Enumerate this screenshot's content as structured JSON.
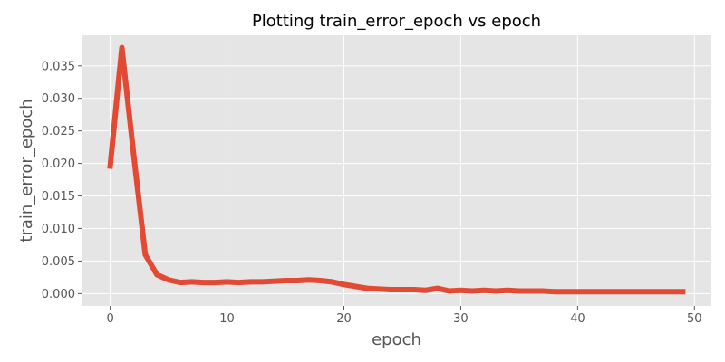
{
  "chart_data": {
    "type": "line",
    "title": "Plotting train_error_epoch vs epoch",
    "xlabel": "epoch",
    "ylabel": "train_error_epoch",
    "xlim": [
      -2.45,
      51.45
    ],
    "ylim": [
      -0.0019,
      0.0397
    ],
    "grid": true,
    "style": "ggplot",
    "colors": {
      "line": "#e24a33",
      "plot_bg": "#e5e5e5",
      "grid": "#ffffff",
      "text": "#555555"
    },
    "x_ticks": [
      0,
      10,
      20,
      30,
      40,
      50
    ],
    "x_tick_labels": [
      "0",
      "10",
      "20",
      "30",
      "40",
      "50"
    ],
    "y_ticks": [
      0.0,
      0.005,
      0.01,
      0.015,
      0.02,
      0.025,
      0.03,
      0.035
    ],
    "y_tick_labels": [
      "0.000",
      "0.005",
      "0.010",
      "0.015",
      "0.020",
      "0.025",
      "0.030",
      "0.035"
    ],
    "series": [
      {
        "x": [
          0,
          1,
          2,
          3,
          4,
          5,
          6,
          7,
          8,
          9,
          10,
          11,
          12,
          13,
          14,
          15,
          16,
          17,
          18,
          19,
          20,
          21,
          22,
          23,
          24,
          25,
          26,
          27,
          28,
          29,
          30,
          31,
          32,
          33,
          34,
          35,
          36,
          37,
          38,
          39,
          40,
          41,
          42,
          43,
          44,
          45,
          46,
          47,
          48,
          49
        ],
        "values": [
          0.0196,
          0.0378,
          0.0215,
          0.006,
          0.0029,
          0.0021,
          0.0017,
          0.0018,
          0.0017,
          0.0017,
          0.0018,
          0.0017,
          0.0018,
          0.0018,
          0.0019,
          0.002,
          0.002,
          0.0021,
          0.002,
          0.0018,
          0.0014,
          0.0011,
          0.0008,
          0.0007,
          0.0006,
          0.0006,
          0.0006,
          0.0005,
          0.0008,
          0.0004,
          0.0005,
          0.0004,
          0.0005,
          0.0004,
          0.0005,
          0.0004,
          0.0004,
          0.0004,
          0.0003,
          0.0003,
          0.0003,
          0.0003,
          0.0003,
          0.0003,
          0.0003,
          0.0003,
          0.0003,
          0.0003,
          0.0003,
          0.0003
        ]
      }
    ]
  }
}
